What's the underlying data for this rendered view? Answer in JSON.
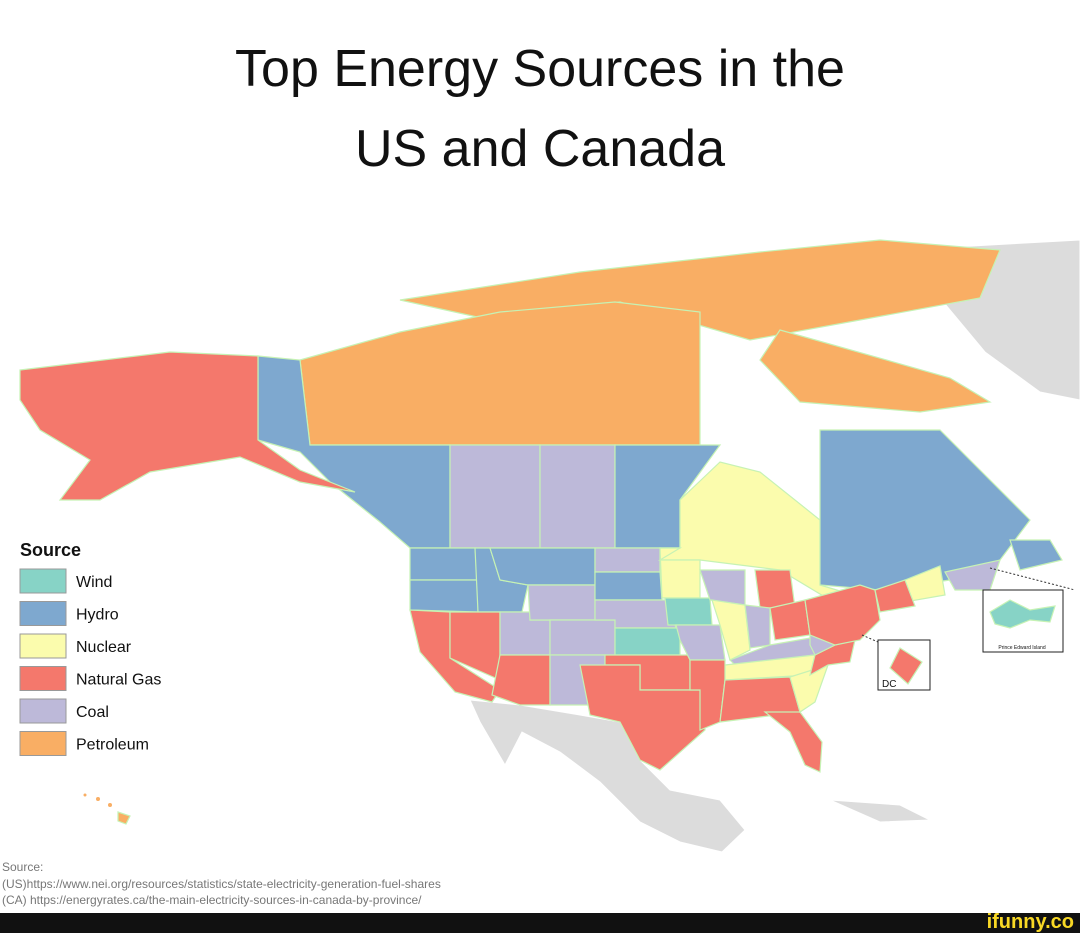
{
  "title_lines": [
    "Top Energy Sources in the",
    "US and Canada"
  ],
  "legend": {
    "title": "Source",
    "items": [
      {
        "label": "Wind",
        "color": "#87d3c6"
      },
      {
        "label": "Hydro",
        "color": "#7ea8cf"
      },
      {
        "label": "Nuclear",
        "color": "#fbfcad"
      },
      {
        "label": "Natural Gas",
        "color": "#f4786c"
      },
      {
        "label": "Coal",
        "color": "#bdb9d9"
      },
      {
        "label": "Petroleum",
        "color": "#f9ae64"
      }
    ]
  },
  "insets": {
    "dc": "DC",
    "pei": "Prince Edward Island"
  },
  "source": {
    "heading": "Source:",
    "lines": [
      "(US)https://www.nei.org/resources/statistics/state-electricity-generation-fuel-shares",
      "(CA) https://energyrates.ca/the-main-electricity-sources-in-canada-by-province/"
    ]
  },
  "watermark": "ifunny.co"
}
